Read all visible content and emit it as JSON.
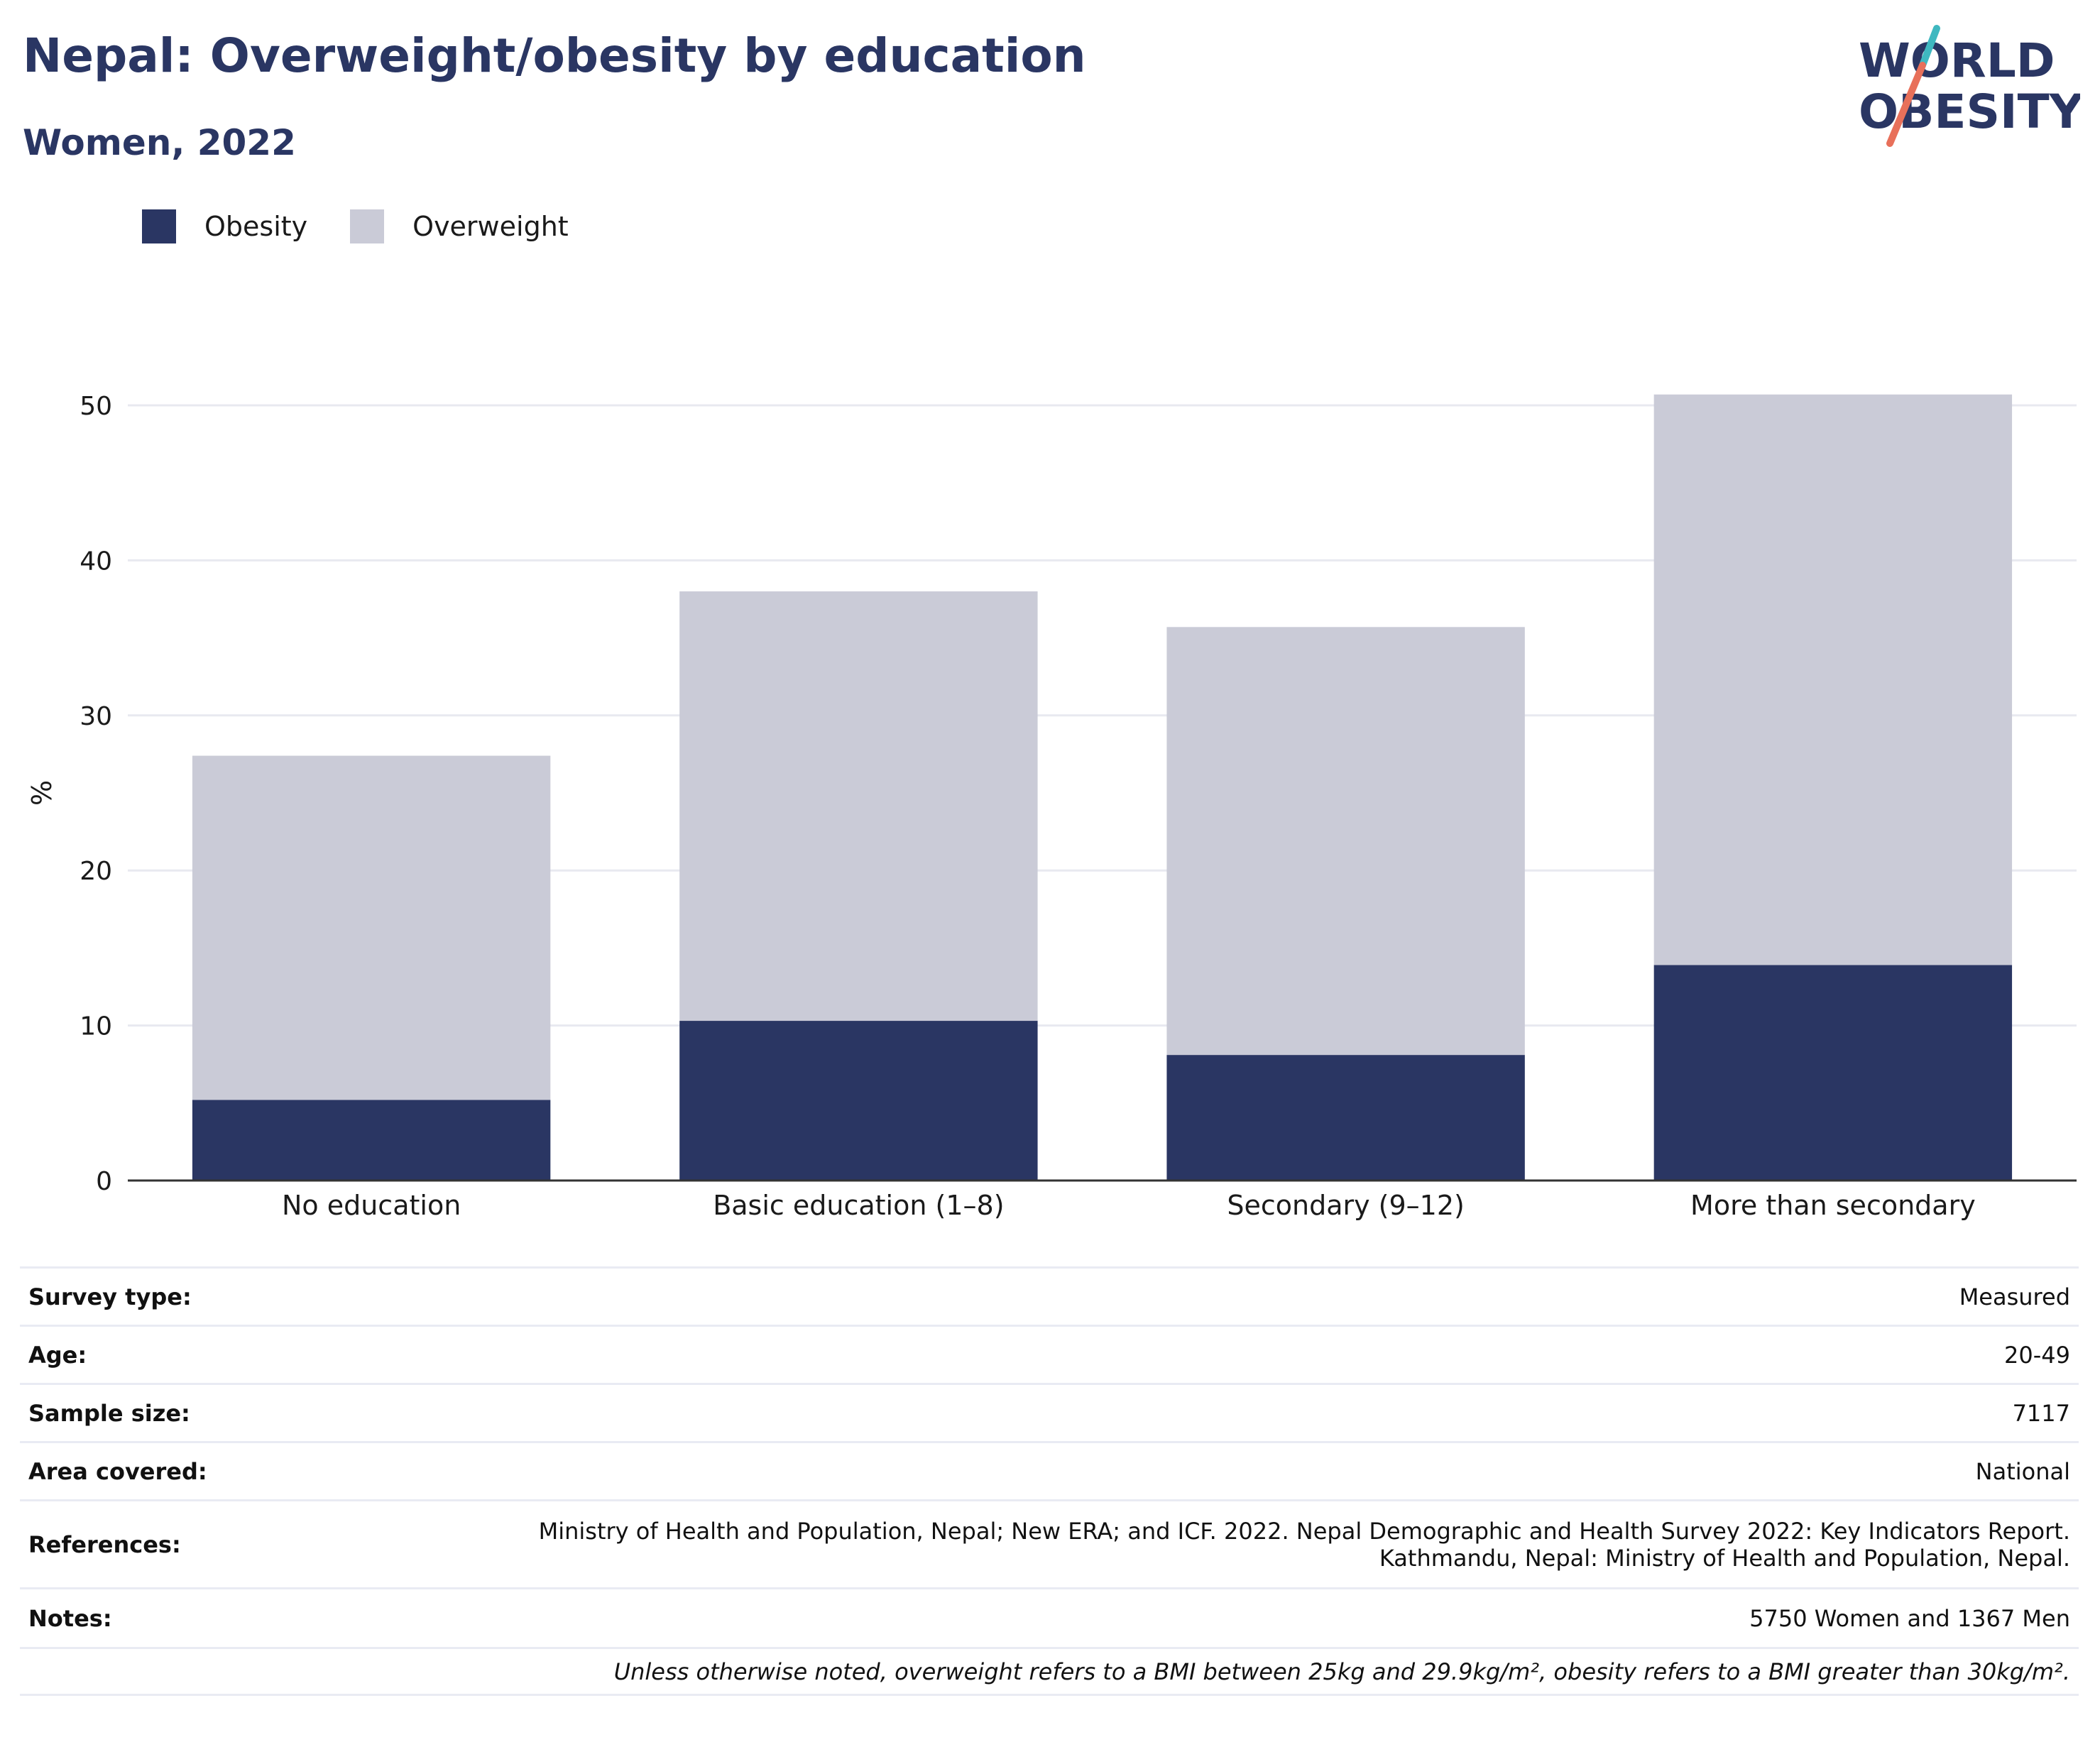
{
  "header": {
    "title": "Nepal: Overweight/obesity by education",
    "subtitle": "Women, 2022"
  },
  "logo": {
    "line1": "WORLD",
    "line2": "OBESITY",
    "colors": {
      "text": "#2a3663",
      "slash_top": "#3fb8c0",
      "slash_bottom": "#e8705a"
    }
  },
  "colors": {
    "obesity": "#2a3663",
    "overweight": "#cacbd7",
    "grid": "#e8e9f0",
    "axis": "#333333"
  },
  "chart_data": {
    "type": "bar",
    "stacked": true,
    "categories": [
      "No education",
      "Basic education (1–8)",
      "Secondary (9–12)",
      "More than secondary"
    ],
    "series": [
      {
        "name": "Obesity",
        "values": [
          5.2,
          10.3,
          8.1,
          13.9
        ]
      },
      {
        "name": "Overweight",
        "values": [
          22.2,
          27.7,
          27.6,
          36.8
        ]
      }
    ],
    "ylabel": "%",
    "ylim": [
      0,
      55
    ],
    "yticks": [
      0,
      10,
      20,
      30,
      40,
      50
    ],
    "grid": true,
    "legend": "top-left"
  },
  "info": {
    "rows": [
      {
        "label": "Survey type:",
        "value": [
          "Measured"
        ]
      },
      {
        "label": "Age:",
        "value": [
          "20-49"
        ]
      },
      {
        "label": "Sample size:",
        "value": [
          "7117"
        ]
      },
      {
        "label": "Area covered:",
        "value": [
          "National"
        ]
      },
      {
        "label": "References:",
        "value": [
          "Ministry of Health and Population, Nepal; New ERA; and ICF. 2022. Nepal Demographic and Health Survey 2022: Key Indicators Report.",
          "Kathmandu, Nepal: Ministry of Health and Population, Nepal."
        ]
      },
      {
        "label": "Notes:",
        "value": [
          "5750 Women and 1367 Men"
        ]
      }
    ],
    "footnote": "Unless otherwise noted, overweight refers to a BMI between 25kg and 29.9kg/m², obesity refers to a BMI greater than 30kg/m²."
  }
}
